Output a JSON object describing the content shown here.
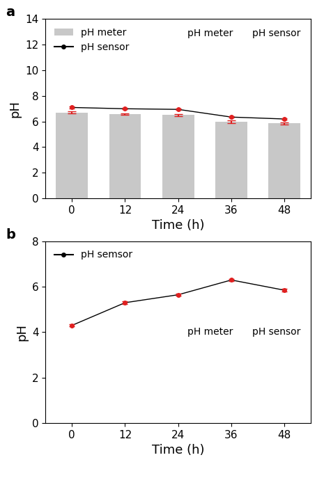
{
  "chart_data": [
    {
      "type": "bar",
      "title": "a",
      "x_label": "Time (h)",
      "y_label": "pH",
      "categories": [
        "0",
        "12",
        "24",
        "36",
        "48"
      ],
      "ylim": [
        0,
        14
      ],
      "yticks": [
        0,
        2,
        4,
        6,
        8,
        10,
        12,
        14
      ],
      "legend": "upper left",
      "annotations": [
        "pH meter",
        "pH sensor"
      ],
      "series": [
        {
          "name": "pH meter",
          "type": "bar",
          "color": "#c8c8c8",
          "values": [
            6.7,
            6.6,
            6.5,
            6.0,
            5.85
          ],
          "errors": [
            0.08,
            0.06,
            0.07,
            0.1,
            0.08
          ]
        },
        {
          "name": "pH sensor",
          "type": "line",
          "color": "#000000",
          "marker": "o",
          "values": [
            7.1,
            7.0,
            6.95,
            6.35,
            6.2
          ],
          "errors": [
            0.06,
            0.05,
            0.05,
            0.06,
            0.06
          ]
        }
      ]
    },
    {
      "type": "line",
      "title": "b",
      "x_label": "Time (h)",
      "y_label": "pH",
      "categories": [
        "0",
        "12",
        "24",
        "36",
        "48"
      ],
      "ylim": [
        0,
        8
      ],
      "yticks": [
        0,
        2,
        4,
        6,
        8
      ],
      "legend": "upper left",
      "annotations": [
        "pH meter",
        "pH sensor"
      ],
      "series": [
        {
          "name": "pH semsor",
          "type": "line",
          "color": "#000000",
          "marker": "o",
          "values": [
            4.3,
            5.3,
            5.65,
            6.3,
            5.85
          ],
          "errors": [
            0.05,
            0.05,
            0.05,
            0.05,
            0.05
          ]
        }
      ]
    }
  ]
}
